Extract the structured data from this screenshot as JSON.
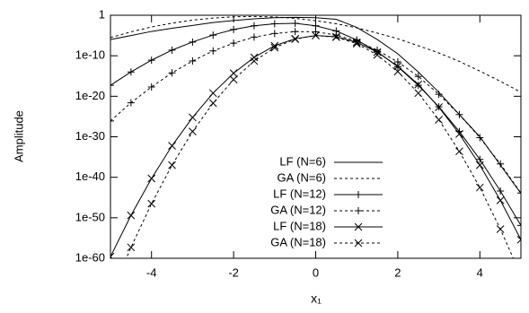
{
  "chart_data": {
    "type": "line",
    "y_label": "Amplitude",
    "x_label": "x₁",
    "log_y": true,
    "legend": "lower center",
    "xlim": [
      -5,
      5
    ],
    "xticks": [
      -4,
      -2,
      0,
      2,
      4
    ],
    "ylim": [
      1e-60,
      1
    ],
    "yticks": [
      1,
      {
        "value": 1e-10,
        "label": "1e-10"
      },
      {
        "value": 1e-20,
        "label": "1e-20"
      },
      {
        "value": 1e-30,
        "label": "1e-30"
      },
      {
        "value": 1e-40,
        "label": "1e-40"
      },
      {
        "value": 1e-50,
        "label": "1e-50"
      },
      {
        "value": 1e-60,
        "label": "1e-60"
      }
    ],
    "x": [
      -5,
      -4.5,
      -4,
      -3.5,
      -3,
      -2.5,
      -2,
      -1.5,
      -1,
      -0.5,
      0,
      0.5,
      1,
      1.5,
      2,
      2.5,
      3,
      3.5,
      4,
      4.5,
      5
    ],
    "series": [
      {
        "name": "LF (N=6)",
        "color": "#000000",
        "dashed": false,
        "values": [
          1e-06,
          1e-05,
          0.0001,
          0.0006,
          0.003,
          0.016,
          0.05,
          0.13,
          0.25,
          0.3,
          0.25,
          0.1,
          0.001,
          1e-06,
          3e-10,
          1e-14,
          1e-19,
          3e-25,
          1e-30,
          1e-37,
          1e-44
        ]
      },
      {
        "name": "GA (N=6)",
        "color": "#000000",
        "dashed": true,
        "values": [
          3e-06,
          8e-05,
          0.0013,
          0.011,
          0.063,
          0.2,
          0.41,
          0.5,
          0.37,
          0.17,
          0.045,
          0.008,
          0.0008,
          4e-05,
          1.6e-06,
          3e-08,
          5e-10,
          4e-12,
          1.6e-14,
          5e-17,
          1e-19
        ]
      },
      {
        "name": "LF (N=12)",
        "color": "#000000",
        "dashed": false,
        "marker": "+",
        "values": [
          5e-18,
          1e-14,
          8e-12,
          2.5e-09,
          2.5e-07,
          1.3e-05,
          0.0003,
          0.0025,
          0.008,
          0.01,
          0.0025,
          0.00013,
          8e-07,
          1e-09,
          2e-13,
          5e-18,
          2.5e-23,
          2e-29,
          2.5e-36,
          4e-44,
          1.3e-52
        ]
      },
      {
        "name": "GA (N=12)",
        "color": "#000000",
        "dashed": true,
        "marker": "+",
        "values": [
          8e-27,
          2.5e-22,
          2e-18,
          6e-15,
          5e-12,
          1.6e-09,
          1.3e-07,
          4e-06,
          3e-05,
          9e-05,
          8e-05,
          1.3e-05,
          4e-07,
          2.5e-09,
          3e-12,
          8e-16,
          3e-20,
          3e-25,
          6e-31,
          2e-37,
          1.3e-44
        ]
      },
      {
        "name": "LF (N=18)",
        "color": "#000000",
        "dashed": false,
        "marker": "x",
        "values": [
          2.5e-60,
          4e-50,
          5e-41,
          6e-33,
          6e-26,
          6e-20,
          5e-15,
          4e-11,
          3e-08,
          1.6e-06,
          1e-05,
          5e-06,
          2e-07,
          8e-10,
          2.5e-13,
          8e-18,
          2e-23,
          5e-30,
          1e-37,
          2e-46,
          4e-56
        ]
      },
      {
        "name": "GA (N=18)",
        "color": "#000000",
        "dashed": true,
        "marker": "x",
        "values": [
          6e-70,
          5e-58,
          3e-47,
          1e-37,
          2e-29,
          2e-22,
          1.3e-16,
          5e-12,
          1e-08,
          1.3e-06,
          1e-05,
          4e-06,
          1e-07,
          1.6e-10,
          1.3e-14,
          6e-20,
          1.6e-26,
          2.5e-34,
          3e-43,
          1.6e-53,
          5e-65
        ]
      }
    ]
  }
}
